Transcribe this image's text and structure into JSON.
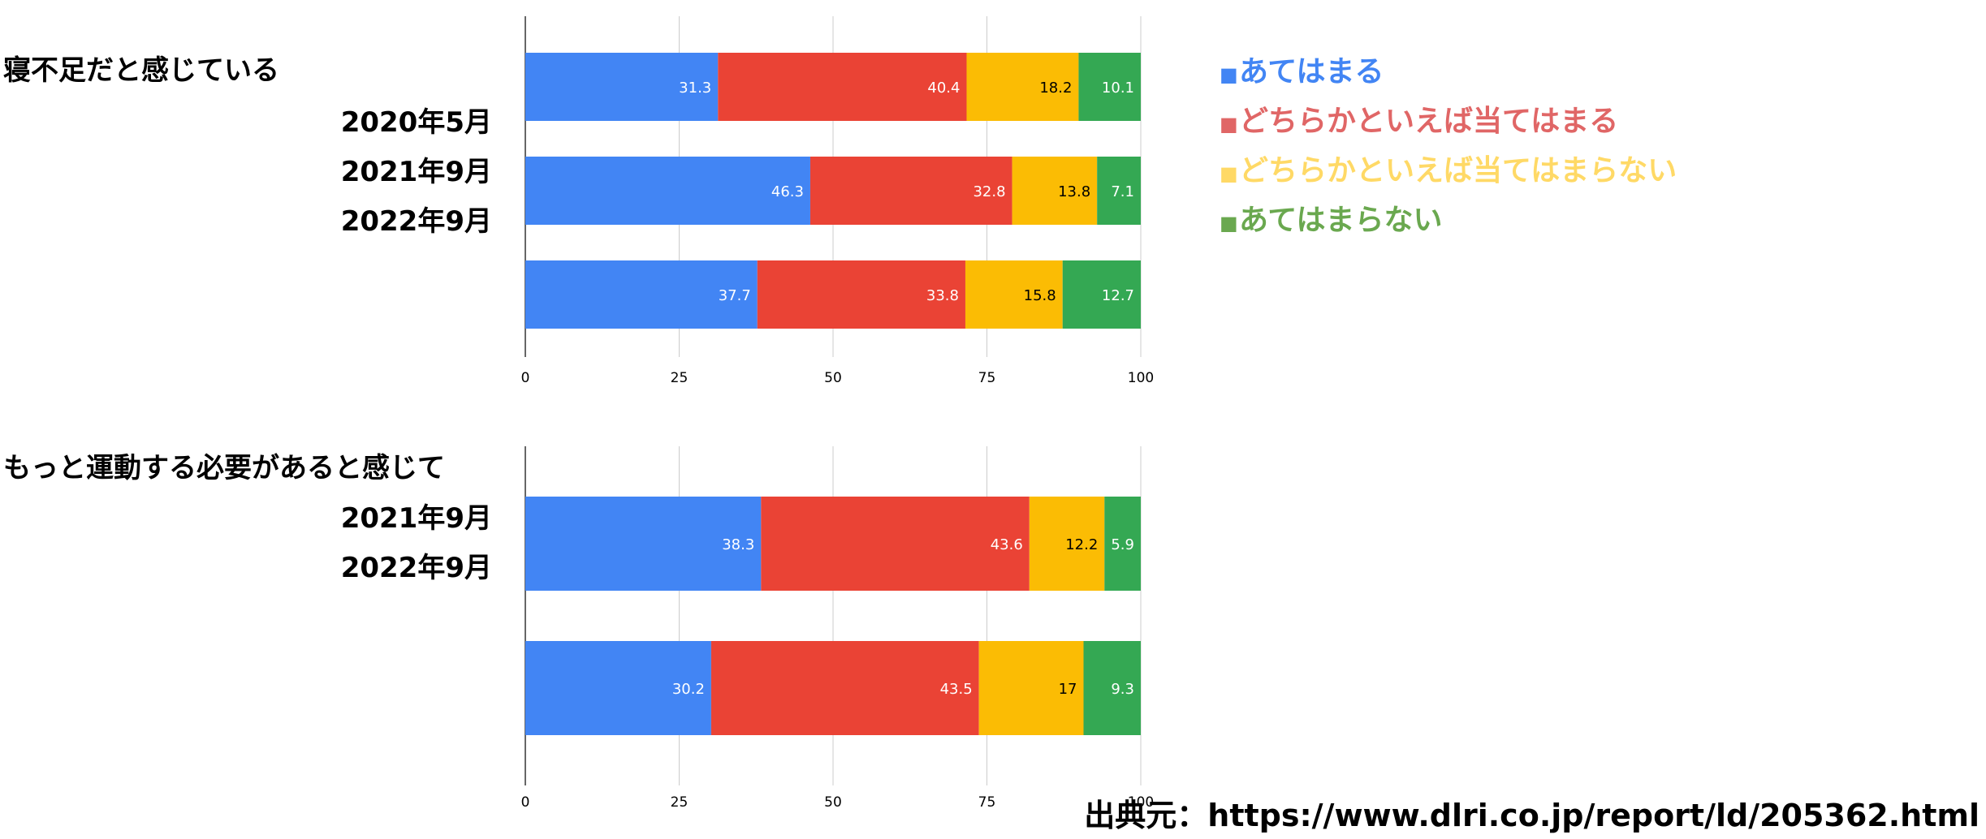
{
  "legend": [
    {
      "label": "あてはまる",
      "marker": "■",
      "color": "#4285f4"
    },
    {
      "label": "どちらかといえば当てはまる",
      "marker": "■",
      "color": "#e06666"
    },
    {
      "label": "どちらかといえば当てはまらない",
      "marker": "■",
      "color": "#ffd966"
    },
    {
      "label": "あてはまらない",
      "marker": "■",
      "color": "#6aa84f"
    }
  ],
  "source": "出典元：https://www.dlri.co.jp/report/ld/205362.html",
  "chart_data": [
    {
      "type": "bar",
      "orientation": "horizontal",
      "stacked": true,
      "title": "寝不足だと感じている",
      "categories": [
        "2020年5月",
        "2021年9月",
        "2022年9月"
      ],
      "xlim": [
        0,
        100
      ],
      "xticks": [
        "0",
        "25",
        "50",
        "75",
        "100"
      ],
      "grid": true,
      "series": [
        {
          "name": "あてはまる",
          "color": "#4285f4",
          "label_color": "#ffffff",
          "values": [
            31.3,
            46.3,
            37.7
          ]
        },
        {
          "name": "どちらかといえば当てはまる",
          "color": "#ea4335",
          "label_color": "#ffffff",
          "values": [
            40.4,
            32.8,
            33.8
          ]
        },
        {
          "name": "どちらかといえば当てはまらない",
          "color": "#fbbc04",
          "label_color": "#000000",
          "values": [
            18.2,
            13.8,
            15.8
          ]
        },
        {
          "name": "あてはまらない",
          "color": "#34a853",
          "label_color": "#ffffff",
          "values": [
            10.1,
            7.1,
            12.7
          ]
        }
      ]
    },
    {
      "type": "bar",
      "orientation": "horizontal",
      "stacked": true,
      "title": "もっと運動する必要があると感じて",
      "categories": [
        "2021年9月",
        "2022年9月"
      ],
      "xlim": [
        0,
        100
      ],
      "xticks": [
        "0",
        "25",
        "50",
        "75",
        "100"
      ],
      "grid": true,
      "series": [
        {
          "name": "あてはまる",
          "color": "#4285f4",
          "label_color": "#ffffff",
          "values": [
            38.3,
            30.2
          ]
        },
        {
          "name": "どちらかといえば当てはまる",
          "color": "#ea4335",
          "label_color": "#ffffff",
          "values": [
            43.6,
            43.5
          ]
        },
        {
          "name": "どちらかといえば当てはまらない",
          "color": "#fbbc04",
          "label_color": "#000000",
          "values": [
            12.2,
            17
          ]
        },
        {
          "name": "あてはまらない",
          "color": "#34a853",
          "label_color": "#ffffff",
          "values": [
            5.9,
            9.3
          ]
        }
      ]
    }
  ]
}
